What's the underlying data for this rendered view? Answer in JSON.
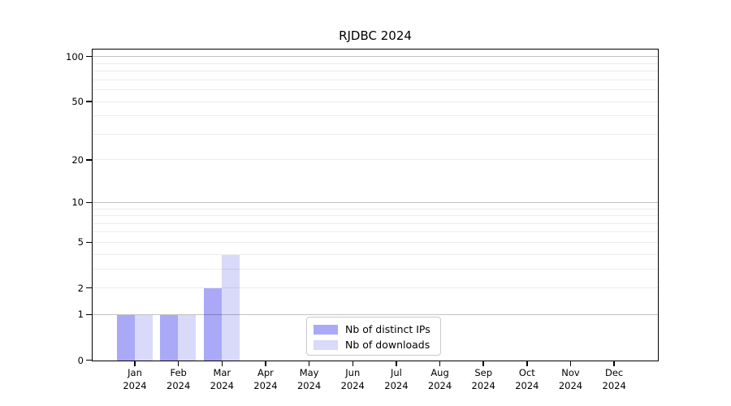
{
  "chart_data": {
    "type": "bar",
    "title": "RJDBC 2024",
    "categories": [
      "Jan",
      "Feb",
      "Mar",
      "Apr",
      "May",
      "Jun",
      "Jul",
      "Aug",
      "Sep",
      "Oct",
      "Nov",
      "Dec"
    ],
    "category_year": "2024",
    "series": [
      {
        "name": "Nb of distinct IPs",
        "color": "#a9a9f8",
        "values": [
          1,
          1,
          2,
          0,
          0,
          0,
          0,
          0,
          0,
          0,
          0,
          0
        ]
      },
      {
        "name": "Nb of downloads",
        "color": "#d9d9fa",
        "values": [
          1,
          1,
          4,
          0,
          0,
          0,
          0,
          0,
          0,
          0,
          0,
          0
        ]
      }
    ],
    "y_axis": {
      "scale": "log1p",
      "tick_labels": [
        0,
        1,
        2,
        5,
        10,
        20,
        50,
        100
      ],
      "decade_gridlines": [
        1,
        10,
        100
      ],
      "minor_gridlines": [
        2,
        3,
        4,
        5,
        6,
        7,
        8,
        9,
        20,
        30,
        40,
        50,
        60,
        70,
        80,
        90
      ],
      "range": [
        0,
        100
      ]
    },
    "xlabel": "",
    "ylabel": "",
    "grid": true,
    "legend_position": "bottom-center",
    "background_color": "#ffffff",
    "axis_color": "#000000"
  }
}
